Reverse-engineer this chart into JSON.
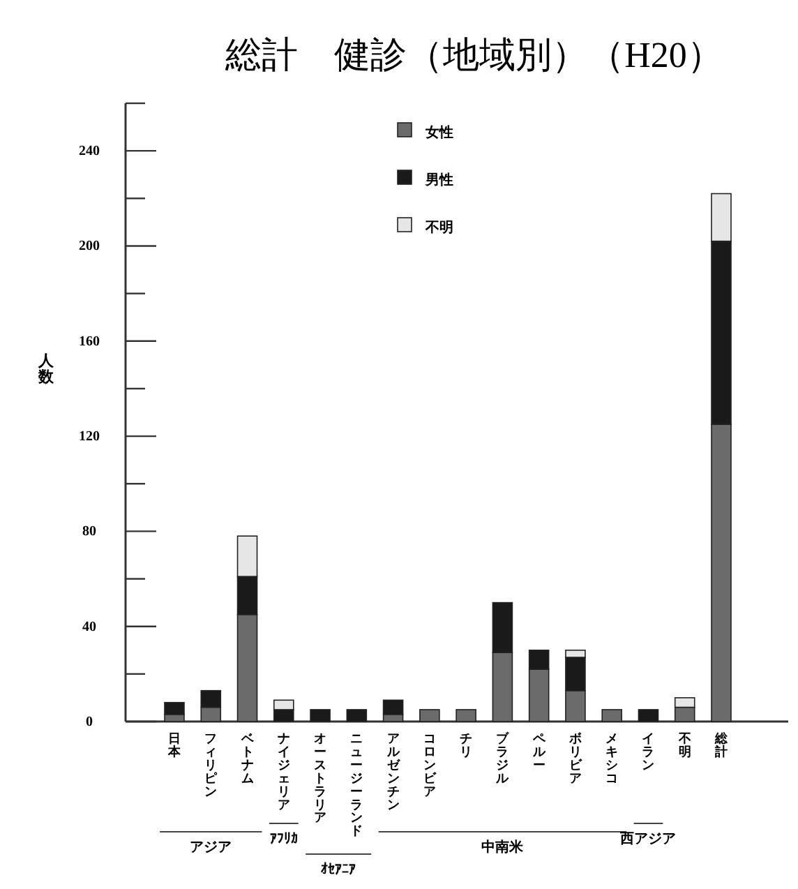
{
  "chart_data": {
    "type": "bar",
    "title": "総計　健診（地域別）（H20）",
    "ylabel": "人数",
    "categories": [
      "日本",
      "フィリピン",
      "ベトナム",
      "ナイジェリア",
      "オーストラリア",
      "ニュージーランド",
      "アルゼンチン",
      "コロンビア",
      "チリ",
      "ブラジル",
      "ペルー",
      "ボリビア",
      "メキシコ",
      "イラン",
      "不明",
      "総計"
    ],
    "stacked": true,
    "series": [
      {
        "name": "女性",
        "color": "#6b6b6b",
        "values": [
          3,
          6,
          45,
          0,
          0,
          0,
          3,
          5,
          5,
          29,
          22,
          13,
          5,
          0,
          6,
          125
        ]
      },
      {
        "name": "男性",
        "color": "#1a1a1a",
        "values": [
          5,
          7,
          16,
          5,
          5,
          5,
          6,
          0,
          0,
          21,
          8,
          14,
          0,
          5,
          0,
          77
        ]
      },
      {
        "name": "不明",
        "color": "#e6e6e6",
        "values": [
          0,
          0,
          17,
          4,
          0,
          0,
          0,
          0,
          0,
          0,
          0,
          3,
          0,
          0,
          4,
          20
        ]
      }
    ],
    "ylim": [
      0,
      260
    ],
    "yticks": [
      0,
      {
        "value": 20,
        "label": null
      },
      40,
      {
        "value": 60,
        "label": null
      },
      80,
      {
        "value": 100,
        "label": null
      },
      120,
      {
        "value": 140,
        "label": null
      },
      160,
      {
        "value": 180,
        "label": null
      },
      200,
      {
        "value": 220,
        "label": null
      },
      240,
      {
        "value": 260,
        "label": null
      }
    ],
    "legend": "top",
    "grid": false,
    "annotations": [
      "アジア",
      "ｱﾌﾘｶ",
      "ｵｾｱﾆｱ",
      "中南米",
      "西アジア"
    ]
  }
}
